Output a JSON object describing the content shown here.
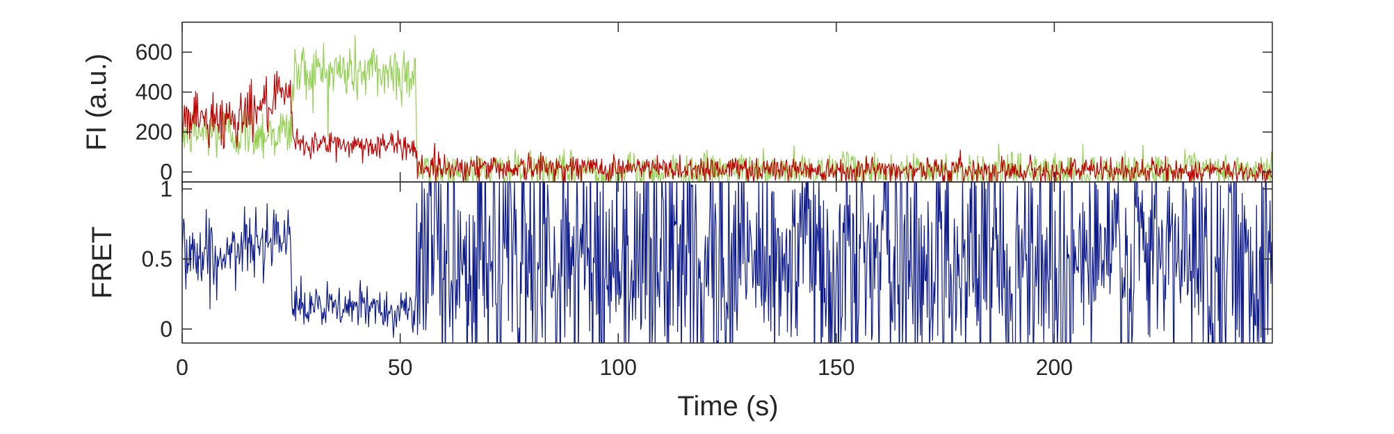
{
  "chart_data": [
    {
      "type": "line",
      "panel": "top",
      "ylabel": "FI (a.u.)",
      "xlabel": "",
      "xlim": [
        0,
        250
      ],
      "ylim": [
        -50,
        750
      ],
      "yticks": [
        0,
        200,
        400,
        600
      ],
      "ytick_labels": [
        "0",
        "200",
        "400",
        "600"
      ],
      "grid": false,
      "series": [
        {
          "color": "#92d050",
          "x": [
            0,
            25,
            25.5,
            53.5,
            54,
            250
          ],
          "y": [
            200,
            200,
            500,
            500,
            5,
            5
          ],
          "noise_std": [
            70,
            70,
            80,
            80,
            45,
            45
          ]
        },
        {
          "color": "#c00000",
          "x": [
            0,
            10,
            25,
            25.5,
            53.5,
            54,
            250
          ],
          "y": [
            280,
            260,
            380,
            140,
            130,
            25,
            0
          ],
          "noise_std": [
            70,
            70,
            60,
            35,
            35,
            35,
            30
          ]
        }
      ]
    },
    {
      "type": "line",
      "panel": "bottom",
      "ylabel": "FRET",
      "xlabel": "Time (s)",
      "xlim": [
        0,
        250
      ],
      "ylim": [
        -0.1,
        1.05
      ],
      "xticks": [
        0,
        50,
        100,
        150,
        200
      ],
      "xtick_labels": [
        "0",
        "50",
        "100",
        "150",
        "200"
      ],
      "yticks": [
        0,
        0.5,
        1
      ],
      "ytick_labels": [
        "0",
        "0.5",
        "1"
      ],
      "grid": false,
      "series": [
        {
          "color": "#0d1a8c",
          "x": [
            0,
            10,
            24.8,
            25.2,
            53.5,
            54,
            250
          ],
          "y": [
            0.55,
            0.5,
            0.75,
            0.15,
            0.15,
            0.5,
            0.5
          ],
          "noise_std": [
            0.15,
            0.12,
            0.1,
            0.08,
            0.08,
            0.45,
            0.45
          ]
        }
      ]
    }
  ]
}
